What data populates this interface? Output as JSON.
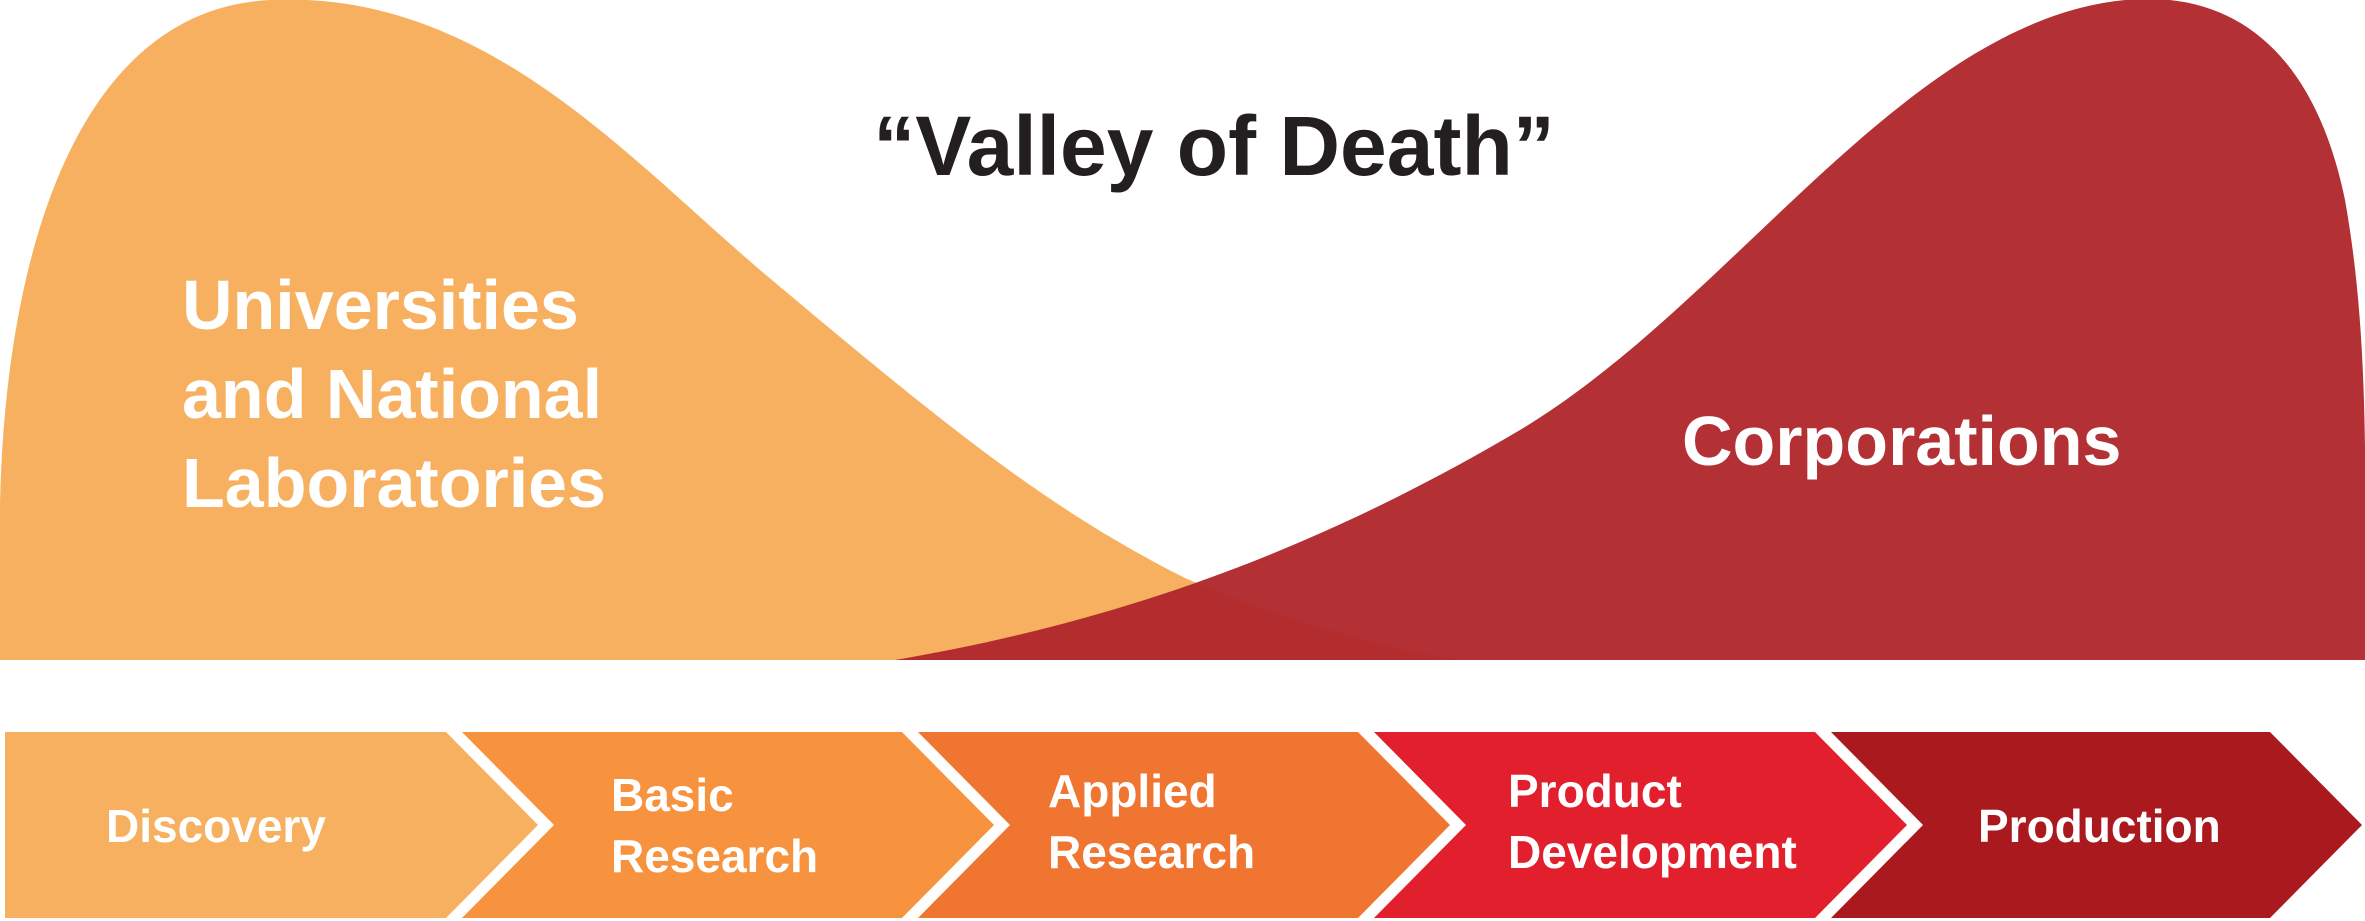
{
  "title": "“Valley of Death”",
  "regions": {
    "left": {
      "lines": [
        "Universities",
        "and National",
        "Laboratories"
      ],
      "color": "#f6b060"
    },
    "right": {
      "lines": [
        "Corporations"
      ],
      "color": "#b0282c"
    }
  },
  "stages": [
    {
      "lines": [
        "Discovery"
      ],
      "color": "#f6b060"
    },
    {
      "lines": [
        "Basic",
        "Research"
      ],
      "color": "#f7933e"
    },
    {
      "lines": [
        "Applied",
        "Research"
      ],
      "color": "#ef7530"
    },
    {
      "lines": [
        "Product",
        "Development"
      ],
      "color": "#e21f2c"
    },
    {
      "lines": [
        "Production"
      ],
      "color": "#aa191e"
    }
  ]
}
